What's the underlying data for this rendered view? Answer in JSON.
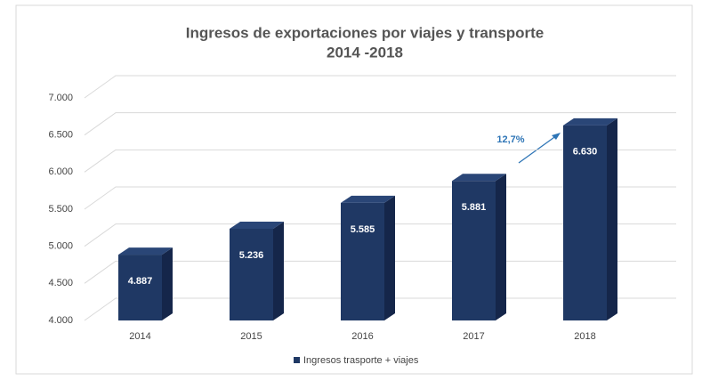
{
  "chart_data": {
    "type": "bar3d",
    "title": "Ingresos de exportaciones por viajes y transporte",
    "subtitle": "2014 -2018",
    "categories": [
      "2014",
      "2015",
      "2016",
      "2017",
      "2018"
    ],
    "series": [
      {
        "name": "Ingresos trasporte + viajes",
        "color": "#1f3864",
        "values": [
          4887,
          5236,
          5585,
          5881,
          6630
        ],
        "value_labels": [
          "4.887",
          "5.236",
          "5.585",
          "5.881",
          "6.630"
        ]
      }
    ],
    "ylim": [
      4000,
      7000
    ],
    "yticks": [
      {
        "value": 4000,
        "label": "4.000"
      },
      {
        "value": 4500,
        "label": "4.500"
      },
      {
        "value": 5000,
        "label": "5.000"
      },
      {
        "value": 5500,
        "label": "5.500"
      },
      {
        "value": 6000,
        "label": "6.000"
      },
      {
        "value": 6500,
        "label": "6.500"
      },
      {
        "value": 7000,
        "label": "7.000"
      }
    ],
    "grid": true,
    "legend": "bottom",
    "annotations": [
      "12,7%"
    ]
  }
}
